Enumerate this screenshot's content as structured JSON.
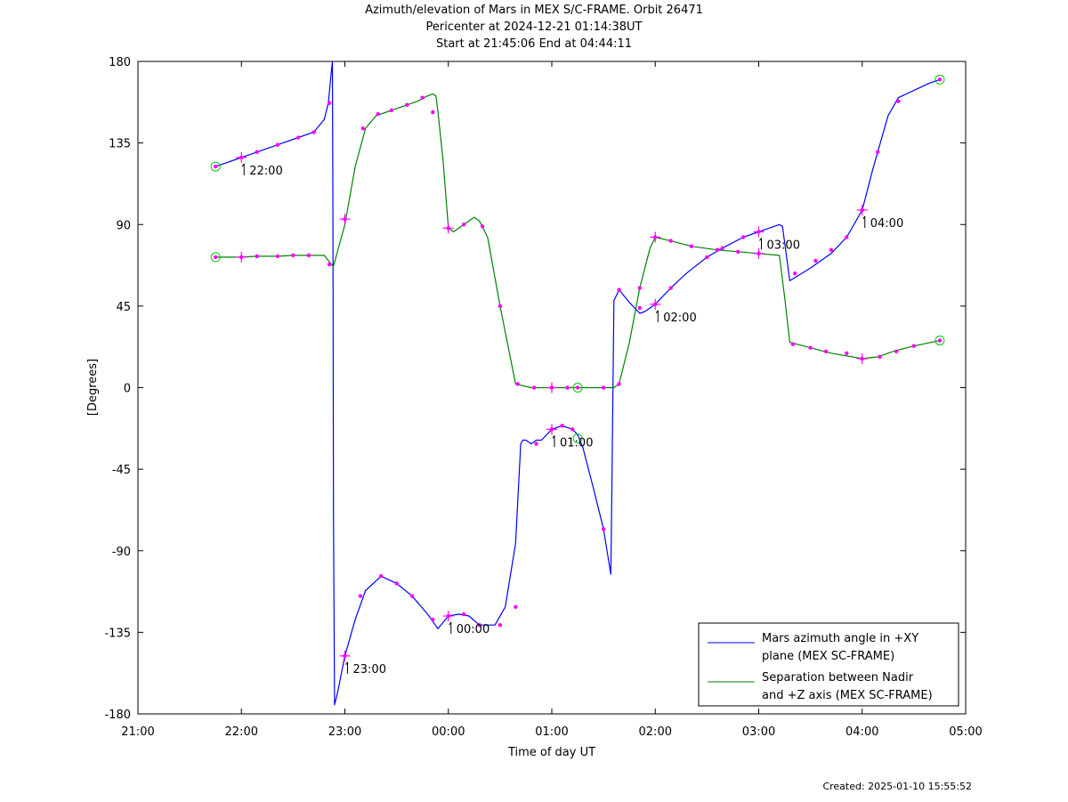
{
  "title_lines": [
    "Azimuth/elevation of Mars in MEX S/C-FRAME.  Orbit 26471",
    "Pericenter at 2024-12-21 01:14:38UT",
    "Start at 21:45:06 End at 04:44:11"
  ],
  "created": "Created: 2025-01-10 15:55:52",
  "colors": {
    "azimuth": "#0000ff",
    "separation": "#008000",
    "markers": "#ff00ff",
    "endpoints": "#00cc00"
  },
  "chart_data": {
    "type": "line",
    "xlabel": "Time of day UT",
    "ylabel": "[Degrees]",
    "xlim": [
      21.0,
      29.0
    ],
    "ylim": [
      -180,
      180
    ],
    "x_ticks": [
      21,
      22,
      23,
      24,
      25,
      26,
      27,
      28,
      29
    ],
    "x_tick_labels": [
      "21:00",
      "22:00",
      "23:00",
      "00:00",
      "01:00",
      "02:00",
      "03:00",
      "04:00",
      "05:00"
    ],
    "y_ticks": [
      180,
      135,
      90,
      45,
      0,
      -45,
      -90,
      -135,
      -180
    ],
    "y_tick_labels": [
      "180",
      "135",
      "90",
      "45",
      "0",
      "-45",
      "-90",
      "-135",
      "-180"
    ],
    "grid": false,
    "legend_position": "bottom-right",
    "series": [
      {
        "name": "Mars azimuth angle in +XY plane (MEX SC-FRAME)",
        "legend_lines": [
          "Mars azimuth angle in +XY",
          "plane (MEX SC-FRAME)"
        ],
        "x": [
          21.75,
          21.9,
          22.0,
          22.15,
          22.35,
          22.55,
          22.7,
          22.8,
          22.84,
          22.87,
          22.88,
          22.885,
          22.89,
          22.9,
          22.93,
          23.0,
          23.1,
          23.2,
          23.35,
          23.5,
          23.65,
          23.8,
          23.9,
          24.0,
          24.1,
          24.2,
          24.3,
          24.45,
          24.55,
          24.65,
          24.7,
          24.72,
          24.75,
          24.8,
          24.85,
          24.9,
          25.0,
          25.1,
          25.2,
          25.25,
          25.3,
          25.4,
          25.5,
          25.57,
          25.58,
          25.6,
          25.65,
          25.75,
          25.85,
          25.9,
          26.0,
          26.15,
          26.3,
          26.5,
          26.65,
          26.85,
          27.0,
          27.1,
          27.2,
          27.23,
          27.3,
          27.5,
          27.7,
          27.85,
          28.0,
          28.1,
          28.25,
          28.35,
          28.5,
          28.65,
          28.75
        ],
        "y": [
          122,
          125,
          127,
          130,
          134,
          138,
          141,
          148,
          157,
          175,
          180,
          90,
          -70,
          -175,
          -168,
          -148,
          -128,
          -112,
          -104,
          -108,
          -115,
          -125,
          -133,
          -126,
          -125,
          -126,
          -131,
          -131,
          -121,
          -86,
          -31,
          -29,
          -29,
          -31,
          -29,
          -29,
          -23,
          -21,
          -23,
          -26,
          -33,
          -55,
          -78,
          -103,
          -60,
          48,
          54,
          47,
          41,
          42,
          46,
          55,
          63,
          72,
          77,
          83,
          86,
          88,
          90,
          89,
          59,
          66,
          74,
          83,
          98,
          120,
          150,
          160,
          164,
          168,
          170
        ],
        "markers_x": [
          21.75,
          22.0,
          22.15,
          22.35,
          22.55,
          22.7,
          22.85,
          23.0,
          23.15,
          23.35,
          23.5,
          23.65,
          23.85,
          24.0,
          24.15,
          24.3,
          24.5,
          24.65,
          24.85,
          25.0,
          25.1,
          25.2,
          25.5,
          25.65,
          25.85,
          26.0,
          26.15,
          26.5,
          26.65,
          26.85,
          27.0,
          27.35,
          27.55,
          27.7,
          27.85,
          28.0,
          28.15,
          28.35,
          28.75
        ],
        "markers_y": [
          122,
          127,
          130,
          134,
          138,
          141,
          157,
          -148,
          -115,
          -104,
          -108,
          -115,
          -128,
          -126,
          -125,
          -131,
          -131,
          -121,
          -31,
          -23,
          -21,
          -23,
          -78,
          54,
          44,
          46,
          55,
          72,
          77,
          83,
          86,
          63,
          70,
          76,
          83,
          98,
          130,
          158,
          170
        ]
      },
      {
        "name": "Separation between Nadir and +Z axis (MEX SC-FRAME)",
        "legend_lines": [
          "Separation between Nadir",
          "and +Z axis (MEX SC-FRAME)"
        ],
        "x": [
          21.75,
          21.9,
          22.0,
          22.15,
          22.35,
          22.5,
          22.65,
          22.8,
          22.87,
          22.89,
          23.0,
          23.1,
          23.2,
          23.3,
          23.4,
          23.55,
          23.7,
          23.8,
          23.85,
          23.88,
          23.9,
          23.95,
          24.0,
          24.05,
          24.15,
          24.25,
          24.3,
          24.38,
          24.5,
          24.65,
          24.8,
          25.0,
          25.25,
          25.5,
          25.6,
          25.65,
          25.75,
          25.85,
          25.95,
          26.0,
          26.15,
          26.35,
          26.6,
          26.8,
          27.0,
          27.2,
          27.25,
          27.3,
          27.5,
          27.7,
          28.0,
          28.15,
          28.3,
          28.5,
          28.75
        ],
        "y": [
          72,
          72,
          72,
          72.5,
          72.5,
          73,
          73,
          73,
          68,
          67,
          90,
          122,
          143,
          150,
          152,
          155,
          158,
          161,
          162,
          161,
          152,
          125,
          88,
          86,
          90,
          94,
          92,
          83,
          45,
          2,
          0,
          0,
          0,
          0,
          0,
          2,
          25,
          55,
          77,
          83,
          81,
          78,
          76,
          75,
          74,
          73,
          50,
          25,
          22,
          19,
          16,
          17,
          20,
          23,
          26
        ],
        "markers_x": [
          21.75,
          22.0,
          22.15,
          22.35,
          22.5,
          22.65,
          22.85,
          23.0,
          23.175,
          23.32,
          23.45,
          23.6,
          23.75,
          23.85,
          24.0,
          24.15,
          24.33,
          24.5,
          24.67,
          24.83,
          25.0,
          25.15,
          25.25,
          25.5,
          25.65,
          25.85,
          26.0,
          26.15,
          26.35,
          26.6,
          26.8,
          27.0,
          27.33,
          27.5,
          27.65,
          27.85,
          28.0,
          28.17,
          28.33,
          28.5,
          28.75
        ],
        "markers_y": [
          72,
          72,
          72.5,
          72.5,
          73,
          73,
          68,
          93,
          143,
          151,
          153,
          156,
          160,
          152,
          88,
          90,
          89,
          45,
          2,
          0,
          0,
          0,
          0,
          0,
          2,
          55,
          83,
          81,
          78,
          76,
          75,
          74,
          24,
          22,
          20,
          19,
          16,
          17,
          20,
          23,
          26
        ]
      }
    ],
    "annotations": [
      {
        "label": "22:00",
        "x": 22.0,
        "y": 127
      },
      {
        "label": "23:00",
        "x": 23.0,
        "y": -148
      },
      {
        "label": "00:00",
        "x": 24.0,
        "y": -126
      },
      {
        "label": "01:00",
        "x": 25.0,
        "y": -23
      },
      {
        "label": "02:00",
        "x": 26.0,
        "y": 46
      },
      {
        "label": "03:00",
        "x": 27.0,
        "y": 86
      },
      {
        "label": "04:00",
        "x": 28.0,
        "y": 98
      }
    ],
    "cross_marks": [
      {
        "x": 22.0,
        "y": 127
      },
      {
        "x": 23.0,
        "y": 93
      },
      {
        "x": 23.0,
        "y": -148
      },
      {
        "x": 24.0,
        "y": 88
      },
      {
        "x": 24.0,
        "y": -126
      },
      {
        "x": 25.0,
        "y": 0
      },
      {
        "x": 25.0,
        "y": -23
      },
      {
        "x": 26.0,
        "y": 83
      },
      {
        "x": 26.0,
        "y": 46
      },
      {
        "x": 27.0,
        "y": 86
      },
      {
        "x": 27.0,
        "y": 74
      },
      {
        "x": 28.0,
        "y": 98
      },
      {
        "x": 28.0,
        "y": 16
      },
      {
        "x": 22.0,
        "y": 72
      }
    ],
    "circle_marks": [
      {
        "x": 21.75,
        "y": 122
      },
      {
        "x": 21.75,
        "y": 72
      },
      {
        "x": 28.75,
        "y": 170
      },
      {
        "x": 28.75,
        "y": 26
      },
      {
        "x": 25.25,
        "y": 0
      },
      {
        "x": 25.25,
        "y": -28
      }
    ]
  }
}
